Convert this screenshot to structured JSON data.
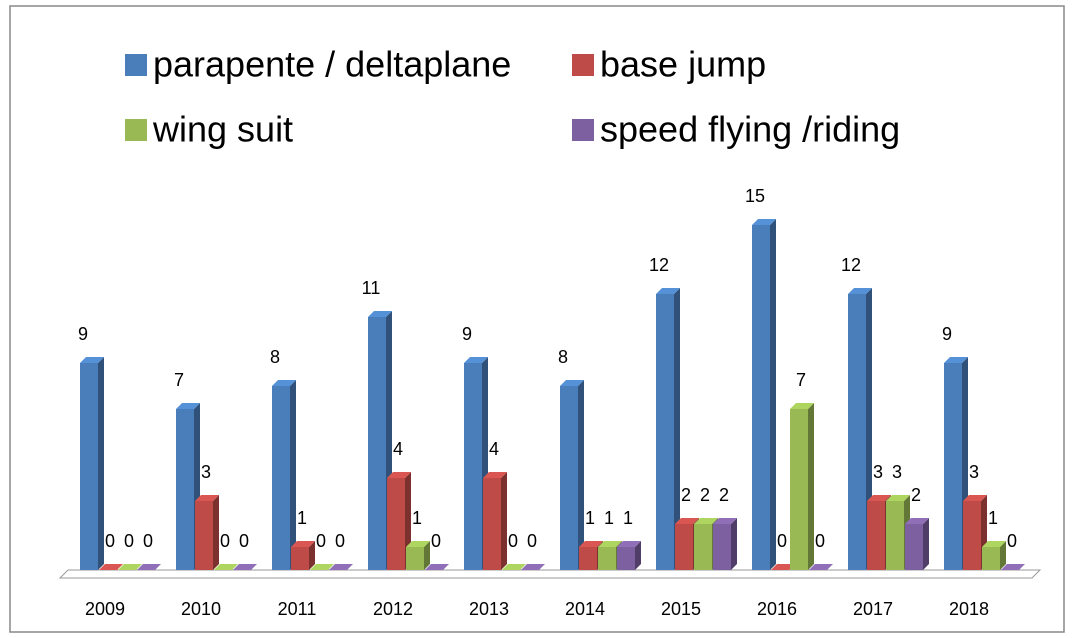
{
  "chart_data": {
    "type": "bar3d",
    "categories": [
      "2009",
      "2010",
      "2011",
      "2012",
      "2013",
      "2014",
      "2015",
      "2016",
      "2017",
      "2018"
    ],
    "series": [
      {
        "name": "parapente / deltaplane",
        "color": "#4a7ebb",
        "values": [
          9,
          7,
          8,
          11,
          9,
          8,
          12,
          15,
          12,
          9
        ]
      },
      {
        "name": "base jump",
        "color": "#be4b48",
        "values": [
          0,
          3,
          1,
          4,
          4,
          1,
          2,
          0,
          3,
          3
        ]
      },
      {
        "name": "wing suit",
        "color": "#98b954",
        "values": [
          0,
          0,
          0,
          1,
          0,
          1,
          2,
          7,
          3,
          1
        ]
      },
      {
        "name": "speed flying /riding",
        "color": "#7d60a0",
        "values": [
          0,
          0,
          0,
          0,
          0,
          1,
          2,
          0,
          2,
          0
        ]
      }
    ],
    "legend": "top"
  }
}
